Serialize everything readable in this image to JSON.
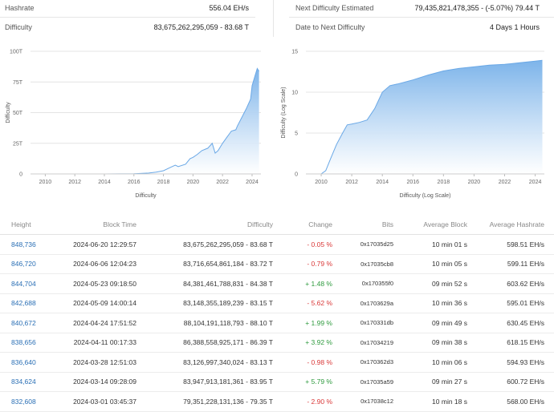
{
  "stats": {
    "hashrate_label": "Hashrate",
    "hashrate_value": "556.04 EH/s",
    "difficulty_label": "Difficulty",
    "difficulty_value": "83,675,262,295,059 - 83.68 T",
    "next_label": "Next Difficulty Estimated",
    "next_value": "79,435,821,478,355 - (-5.07%) 79.44 T",
    "date_label": "Date to Next Difficulty",
    "date_value": "4 Days 1 Hours"
  },
  "charts": {
    "colors": {
      "line": "#6aa8e6",
      "fill_top": "#7db4ea",
      "fill_bottom": "#ffffff"
    },
    "left": {
      "ylabel": "Difficulty",
      "xlabel": "Difficulty",
      "yticks": [
        "0",
        "25T",
        "50T",
        "75T",
        "100T"
      ],
      "xticks": [
        "2010",
        "2012",
        "2014",
        "2016",
        "2018",
        "2020",
        "2022",
        "2024"
      ]
    },
    "right": {
      "ylabel": "Difficulty (Log Scale)",
      "xlabel": "Difficulty (Log Scale)",
      "yticks": [
        "0",
        "5",
        "10",
        "15"
      ],
      "xticks": [
        "2010",
        "2012",
        "2014",
        "2016",
        "2018",
        "2020",
        "2022",
        "2024"
      ]
    }
  },
  "chart_data": [
    {
      "type": "area",
      "xlabel": "Difficulty",
      "ylabel": "Difficulty",
      "xlim": [
        2009,
        2024.6
      ],
      "ylim": [
        0,
        100
      ],
      "y_unit": "T",
      "x": [
        2009.0,
        2012.0,
        2014.0,
        2015.0,
        2016.0,
        2017.0,
        2017.5,
        2018.0,
        2018.5,
        2018.8,
        2019.0,
        2019.5,
        2019.8,
        2020.0,
        2020.3,
        2020.6,
        2021.0,
        2021.3,
        2021.5,
        2021.7,
        2022.0,
        2022.3,
        2022.6,
        2022.9,
        2023.0,
        2023.3,
        2023.6,
        2023.9,
        2024.0,
        2024.2,
        2024.35,
        2024.47
      ],
      "y": [
        0,
        0,
        0.03,
        0.05,
        0.2,
        0.7,
        1.5,
        2.6,
        5.5,
        7.2,
        6.0,
        8.0,
        12.5,
        13.5,
        16.0,
        19.0,
        21.0,
        25.0,
        17.0,
        19.0,
        25.0,
        30.0,
        35.0,
        36.0,
        39.0,
        46.0,
        53.0,
        61.0,
        72.0,
        80.0,
        86.0,
        83.7
      ]
    },
    {
      "type": "area",
      "xlabel": "Difficulty (Log Scale)",
      "ylabel": "Difficulty (Log Scale)",
      "xlim": [
        2009,
        2024.6
      ],
      "ylim": [
        0,
        15
      ],
      "x": [
        2009.0,
        2010.0,
        2010.3,
        2010.6,
        2011.0,
        2011.4,
        2011.7,
        2012.0,
        2012.5,
        2013.0,
        2013.5,
        2014.0,
        2014.5,
        2015.0,
        2016.0,
        2017.0,
        2018.0,
        2019.0,
        2020.0,
        2021.0,
        2022.0,
        2023.0,
        2024.0,
        2024.47
      ],
      "y": [
        0,
        0,
        0.4,
        1.8,
        3.6,
        5.0,
        6.0,
        6.1,
        6.3,
        6.6,
        8.0,
        10.0,
        10.8,
        11.0,
        11.5,
        12.1,
        12.6,
        12.9,
        13.1,
        13.3,
        13.4,
        13.6,
        13.8,
        13.9
      ]
    }
  ],
  "table": {
    "headers": [
      "Height",
      "Block Time",
      "Difficulty",
      "Change",
      "Bits",
      "Average Block",
      "Average Hashrate"
    ],
    "rows": [
      {
        "height": "848,736",
        "time": "2024-06-20 12:29:57",
        "difficulty": "83,675,262,295,059 - 83.68 T",
        "change": "- 0.05 %",
        "dir": "neg",
        "bits": "0x17035d25",
        "avg": "10 min 01 s",
        "hash": "598.51 EH/s"
      },
      {
        "height": "846,720",
        "time": "2024-06-06 12:04:23",
        "difficulty": "83,716,654,861,184 - 83.72 T",
        "change": "- 0.79 %",
        "dir": "neg",
        "bits": "0x17035cb8",
        "avg": "10 min 05 s",
        "hash": "599.11 EH/s"
      },
      {
        "height": "844,704",
        "time": "2024-05-23 09:18:50",
        "difficulty": "84,381,461,788,831 - 84.38 T",
        "change": "+ 1.48 %",
        "dir": "pos",
        "bits": "0x170355f0",
        "avg": "09 min 52 s",
        "hash": "603.62 EH/s"
      },
      {
        "height": "842,688",
        "time": "2024-05-09 14:00:14",
        "difficulty": "83,148,355,189,239 - 83.15 T",
        "change": "- 5.62 %",
        "dir": "neg",
        "bits": "0x1703629a",
        "avg": "10 min 36 s",
        "hash": "595.01 EH/s"
      },
      {
        "height": "840,672",
        "time": "2024-04-24 17:51:52",
        "difficulty": "88,104,191,118,793 - 88.10 T",
        "change": "+ 1.99 %",
        "dir": "pos",
        "bits": "0x170331db",
        "avg": "09 min 49 s",
        "hash": "630.45 EH/s"
      },
      {
        "height": "838,656",
        "time": "2024-04-11 00:17:33",
        "difficulty": "86,388,558,925,171 - 86.39 T",
        "change": "+ 3.92 %",
        "dir": "pos",
        "bits": "0x17034219",
        "avg": "09 min 38 s",
        "hash": "618.15 EH/s"
      },
      {
        "height": "836,640",
        "time": "2024-03-28 12:51:03",
        "difficulty": "83,126,997,340,024 - 83.13 T",
        "change": "- 0.98 %",
        "dir": "neg",
        "bits": "0x170362d3",
        "avg": "10 min 06 s",
        "hash": "594.93 EH/s"
      },
      {
        "height": "834,624",
        "time": "2024-03-14 09:28:09",
        "difficulty": "83,947,913,181,361 - 83.95 T",
        "change": "+ 5.79 %",
        "dir": "pos",
        "bits": "0x17035a59",
        "avg": "09 min 27 s",
        "hash": "600.72 EH/s"
      },
      {
        "height": "832,608",
        "time": "2024-03-01 03:45:37",
        "difficulty": "79,351,228,131,136 - 79.35 T",
        "change": "- 2.90 %",
        "dir": "neg",
        "bits": "0x17038c12",
        "avg": "10 min 18 s",
        "hash": "568.00 EH/s"
      }
    ]
  }
}
